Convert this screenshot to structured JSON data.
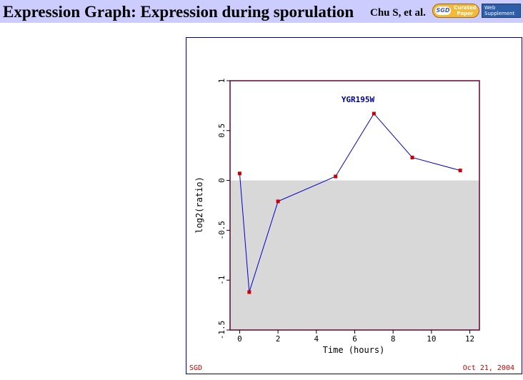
{
  "header": {
    "title": "Expression Graph: Expression during sporulation",
    "author": "Chu S, et al.",
    "badge_curated": {
      "logo": "SGD",
      "line1": "Curated",
      "line2": "Paper"
    },
    "badge_web": {
      "line1": "Web",
      "line2": "Supplement"
    },
    "colors": {
      "bar": "#ccccff",
      "curated_badge": "#f5b93a",
      "web_badge": "#2f5ea8"
    }
  },
  "footer": {
    "left": "SGD",
    "right": "Oct 21, 2004",
    "color": "#cc0000"
  },
  "chart_data": {
    "type": "line",
    "title": "YGR195W",
    "xlabel": "Time (hours)",
    "ylabel": "log2(ratio)",
    "xlim": [
      -0.5,
      12.5
    ],
    "ylim": [
      -1.5,
      1
    ],
    "x_ticks": [
      0,
      2,
      4,
      6,
      8,
      10,
      12
    ],
    "x_tick_labels": [
      "0",
      "2",
      "4",
      "6",
      "8",
      "10",
      "12"
    ],
    "y_ticks": [
      -1.5,
      -1,
      -0.5,
      0,
      0.5,
      1
    ],
    "y_tick_labels": [
      "-1.5",
      "-1",
      "-0.5",
      "0",
      "0.5",
      "1"
    ],
    "negative_region_shaded": true,
    "series": [
      {
        "x": [
          0,
          0.5,
          2,
          5,
          7,
          9,
          11.5
        ],
        "y": [
          0.07,
          -1.12,
          -0.21,
          0.04,
          0.67,
          0.23,
          0.1
        ],
        "line_color": "#0000cc",
        "marker_color": "#cc0000"
      }
    ],
    "colors": {
      "frame": "#660033",
      "shade": "#d8d8d8",
      "title": "#000099",
      "border": "#000080"
    }
  }
}
